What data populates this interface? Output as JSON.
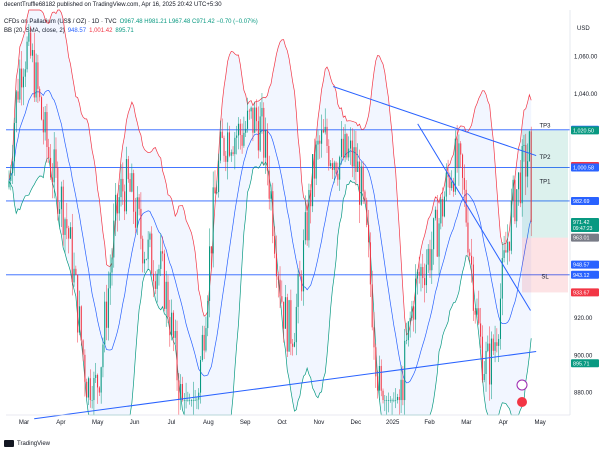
{
  "header": {
    "publisher": "decentTruffle68182 published on TradingView.com, Apr 16, 2025 20:42 UTC+5:30"
  },
  "legend": {
    "symbol": "CFDs on Palladium (US$ / OZ) · 1D · TVC",
    "ohlc": "O967.48 H981.21 L967.48 C971.42 −0.70 (−0.07%)",
    "bb_label": "BB (20, SMA, close, 2)",
    "bb_basis": "948.57",
    "bb_upper": "1,001.42",
    "bb_lower": "895.71"
  },
  "footer": {
    "brand": "TradingView"
  },
  "colors": {
    "up": "#089981",
    "down": "#f23645",
    "basis": "#2962ff",
    "upper": "#f23645",
    "lower": "#089981",
    "fill": "#2962ff",
    "hline": "#2962ff",
    "trend": "#2962ff",
    "profit": "#089981",
    "loss": "#f23645"
  },
  "chart_data": {
    "type": "candlestick",
    "y_unit": "USD",
    "ylim": [
      868,
      1085
    ],
    "x_ticks": [
      "Mar",
      "Apr",
      "May",
      "Jun",
      "Jul",
      "Aug",
      "Sep",
      "Oct",
      "Nov",
      "Dec",
      "2025",
      "Feb",
      "Mar",
      "Apr",
      "May"
    ],
    "y_ticks": [
      {
        "value": 1060,
        "label": "1,060.00"
      },
      {
        "value": 1040,
        "label": "1,040.00"
      },
      {
        "value": 920,
        "label": "920.00"
      },
      {
        "value": 900,
        "label": "900.00"
      },
      {
        "value": 880,
        "label": "880.00"
      }
    ],
    "price_labels": [
      {
        "value": 1020.81,
        "label": "1,020.81",
        "color": "#2962ff"
      },
      {
        "value": 1020.5,
        "label": "1,020.50",
        "color": "#089981"
      },
      {
        "value": 1001.42,
        "label": "1,001.42",
        "color": "#f23645"
      },
      {
        "value": 1000.58,
        "label": "1,000.58",
        "color": "#2962ff"
      },
      {
        "value": 982.69,
        "label": "982.69",
        "color": "#2962ff"
      },
      {
        "value": 971.42,
        "label": "971.42",
        "color": "#089981",
        "sub": "09:47:23"
      },
      {
        "value": 963.01,
        "label": "963.01",
        "color": "#787b86"
      },
      {
        "value": 948.57,
        "label": "948.57",
        "color": "#2962ff"
      },
      {
        "value": 943.12,
        "label": "943.12",
        "color": "#2962ff"
      },
      {
        "value": 933.67,
        "label": "933.67",
        "color": "#f23645"
      },
      {
        "value": 895.71,
        "label": "895.71",
        "color": "#089981"
      }
    ],
    "horizontal_levels": [
      1020.81,
      1000.58,
      982.69,
      943.12
    ],
    "targets": [
      {
        "label": "TP1",
        "value": 991
      },
      {
        "label": "TP2",
        "value": 1004
      },
      {
        "label": "TP3",
        "value": 1021
      },
      {
        "label": "SL",
        "value": 940
      }
    ],
    "position": {
      "entry": 963.01,
      "target": 1020.5,
      "stop": 933.67
    },
    "trendlines": [
      {
        "from": [
          0.05,
          866
        ],
        "to": [
          0.94,
          902
        ]
      },
      {
        "from": [
          0.58,
          1044
        ],
        "to": [
          0.94,
          1007
        ]
      },
      {
        "from": [
          0.73,
          1024
        ],
        "to": [
          0.93,
          924
        ]
      }
    ],
    "bollinger": {
      "period": 20,
      "mult": 2,
      "basis_last": 948.57,
      "upper_last": 1001.42,
      "lower_last": 895.71
    },
    "seed": {
      "start": 990,
      "end": 971.42,
      "count": 290
    }
  }
}
